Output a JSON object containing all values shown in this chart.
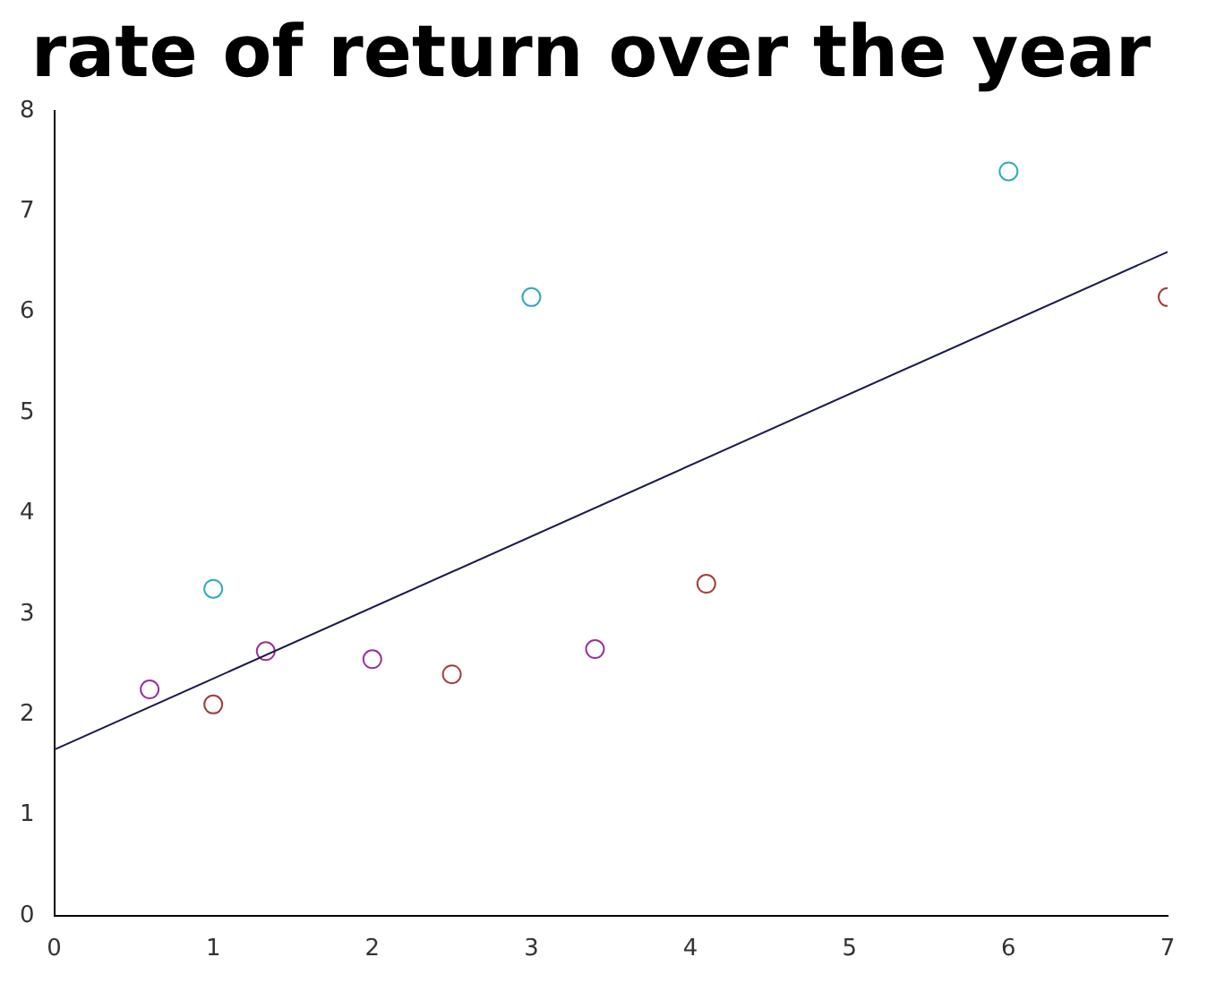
{
  "chart_data": {
    "type": "scatter",
    "title": "rate of return over the year",
    "xlim": [
      0,
      7
    ],
    "ylim": [
      0,
      8
    ],
    "xticks": [
      0,
      1,
      2,
      3,
      4,
      5,
      6,
      7
    ],
    "yticks": [
      0,
      1,
      2,
      3,
      4,
      5,
      6,
      7,
      8
    ],
    "grid": false,
    "legend": false,
    "marker": "circle",
    "series": [
      {
        "color": "#33aabb",
        "x": [
          1,
          3,
          6
        ],
        "values": [
          3.25,
          6.15,
          7.4
        ]
      },
      {
        "color": "#a04040",
        "x": [
          1,
          2.5,
          4.1,
          7
        ],
        "values": [
          2.1,
          2.4,
          3.3,
          6.15
        ]
      },
      {
        "color": "#993399",
        "x": [
          0.6,
          1.33,
          2,
          3.4
        ],
        "values": [
          2.25,
          2.63,
          2.55,
          2.65
        ]
      },
      {
        "type": "line",
        "color": "#1a1a50",
        "x": [
          0,
          7
        ],
        "values": [
          1.65,
          6.6
        ],
        "marker": "none",
        "line_style": "solid"
      }
    ]
  }
}
